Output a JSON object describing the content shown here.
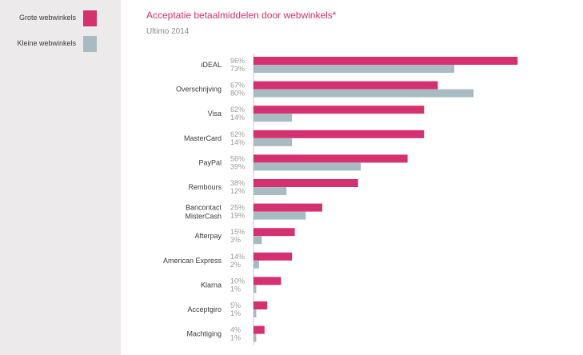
{
  "legend": {
    "items": [
      {
        "label": "Grote webwinkels",
        "color": "#D5306F"
      },
      {
        "label": "Kleine webwinkels",
        "color": "#A9BBC2"
      }
    ]
  },
  "chart_data": {
    "type": "bar",
    "orientation": "horizontal",
    "title": "Acceptatie betaalmiddelen door webwinkels*",
    "subtitle": "Ultimo 2014",
    "xlabel": "",
    "ylabel": "",
    "xlim": [
      0,
      100
    ],
    "grid": false,
    "legend_position": "left-panel",
    "categories": [
      [
        "iDEAL"
      ],
      [
        "Overschrijving"
      ],
      [
        "Visa"
      ],
      [
        "MasterCard"
      ],
      [
        "PayPal"
      ],
      [
        "Rembours"
      ],
      [
        "Bancontact",
        "MisterCash"
      ],
      [
        "Afterpay"
      ],
      [
        "American Express"
      ],
      [
        "Klarna"
      ],
      [
        "Acceptgiro"
      ],
      [
        "Machtiging"
      ]
    ],
    "series": [
      {
        "name": "Grote webwinkels",
        "color": "#D5306F",
        "values": [
          96,
          67,
          62,
          62,
          56,
          38,
          25,
          15,
          14,
          10,
          5,
          4
        ]
      },
      {
        "name": "Kleine webwinkels",
        "color": "#A9BBC2",
        "values": [
          73,
          80,
          14,
          14,
          39,
          12,
          19,
          3,
          2,
          1,
          1,
          1
        ]
      }
    ],
    "value_suffix": "%"
  }
}
